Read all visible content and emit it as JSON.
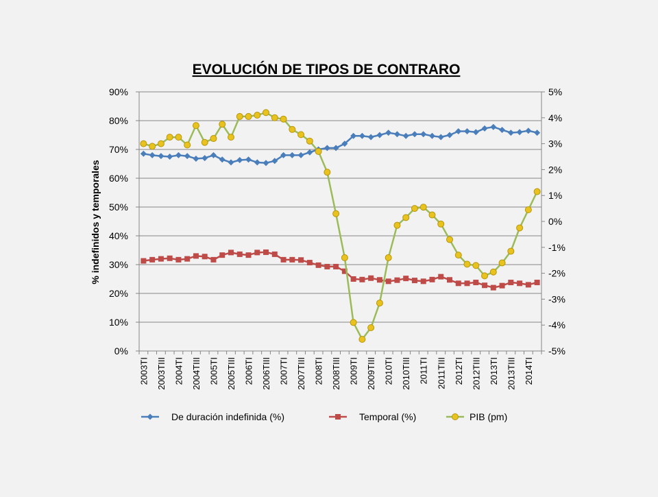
{
  "chart_data": {
    "type": "line",
    "title": "EVOLUCIÓN DE TIPOS DE CONTRARO",
    "ylabel": "% indefinidos y temporales",
    "y2label": "",
    "ylim": [
      0,
      90
    ],
    "y_ticks": [
      "0%",
      "10%",
      "20%",
      "30%",
      "40%",
      "50%",
      "60%",
      "70%",
      "80%",
      "90%"
    ],
    "y2lim": [
      -5,
      5
    ],
    "y2_ticks": [
      "-5%",
      "-4%",
      "-3%",
      "-2%",
      "-1%",
      "0%",
      "1%",
      "2%",
      "3%",
      "4%",
      "5%"
    ],
    "grid": true,
    "legend_position": "bottom",
    "tick_labels": [
      "2003TI",
      "2003TIII",
      "2004TI",
      "2004TIII",
      "2005TI",
      "2005TIII",
      "2006TI",
      "2006TIII",
      "2007TI",
      "2007TIII",
      "2008TI",
      "2008TIII",
      "2009TI",
      "2009TIII",
      "2010TI",
      "2010TIII",
      "2011TI",
      "2011TIII",
      "2012TI",
      "2012TIII",
      "2013TI",
      "2013TIII",
      "2014TI"
    ],
    "x": [
      "2003TI",
      "2003TII",
      "2003TIII",
      "2003TIV",
      "2004TI",
      "2004TII",
      "2004TIII",
      "2004TIV",
      "2005TI",
      "2005TII",
      "2005TIII",
      "2005TIV",
      "2006TI",
      "2006TII",
      "2006TIII",
      "2006TIV",
      "2007TI",
      "2007TII",
      "2007TIII",
      "2007TIV",
      "2008TI",
      "2008TII",
      "2008TIII",
      "2008TIV",
      "2009TI",
      "2009TII",
      "2009TIII",
      "2009TIV",
      "2010TI",
      "2010TII",
      "2010TIII",
      "2010TIV",
      "2011TI",
      "2011TII",
      "2011TIII",
      "2011TIV",
      "2012TI",
      "2012TII",
      "2012TIII",
      "2012TIV",
      "2013TI",
      "2013TII",
      "2013TIII",
      "2013TIV",
      "2014TI",
      "2014TII"
    ],
    "series": [
      {
        "name": "De duración indefinida (%)",
        "axis": "left",
        "color": "#4a7ebb",
        "marker": "diamond",
        "values": [
          68.5,
          68,
          67.7,
          67.5,
          68,
          67.7,
          66.8,
          67,
          68,
          66.5,
          65.5,
          66.3,
          66.5,
          65.5,
          65.3,
          66,
          68,
          68,
          68,
          69,
          70,
          70.5,
          70.5,
          72,
          74.7,
          74.7,
          74.3,
          75,
          75.8,
          75.3,
          74.7,
          75.3,
          75.3,
          74.7,
          74.3,
          75,
          76.3,
          76.3,
          76,
          77.3,
          77.8,
          76.8,
          75.8,
          76,
          76.5,
          75.8
        ]
      },
      {
        "name": "Temporal (%)",
        "axis": "left",
        "color": "#be4b48",
        "marker": "square",
        "values": [
          31.3,
          31.7,
          32,
          32.2,
          31.7,
          32,
          33,
          32.8,
          31.7,
          33.3,
          34.2,
          33.6,
          33.3,
          34.2,
          34.3,
          33.6,
          31.7,
          31.7,
          31.6,
          30.7,
          29.8,
          29.3,
          29.3,
          27.7,
          25,
          24.8,
          25.3,
          24.7,
          24.2,
          24.6,
          25.2,
          24.5,
          24.2,
          24.8,
          25.8,
          24.7,
          23.5,
          23.5,
          23.8,
          22.8,
          22,
          22.7,
          23.8,
          23.5,
          23,
          23.8
        ]
      },
      {
        "name": "PIB (pm)",
        "axis": "right",
        "color": "#9bbb59",
        "marker": "circle",
        "values": [
          3.0,
          2.9,
          3.0,
          3.25,
          3.25,
          2.95,
          3.7,
          3.05,
          3.2,
          3.75,
          3.25,
          4.05,
          4.05,
          4.1,
          4.2,
          4.0,
          3.95,
          3.55,
          3.35,
          3.1,
          2.7,
          1.9,
          0.3,
          -1.4,
          -3.9,
          -4.55,
          -4.1,
          -3.15,
          -1.4,
          -0.15,
          0.15,
          0.5,
          0.55,
          0.25,
          -0.1,
          -0.7,
          -1.3,
          -1.65,
          -1.7,
          -2.1,
          -1.95,
          -1.6,
          -1.15,
          -0.25,
          0.45,
          1.15
        ]
      }
    ]
  }
}
